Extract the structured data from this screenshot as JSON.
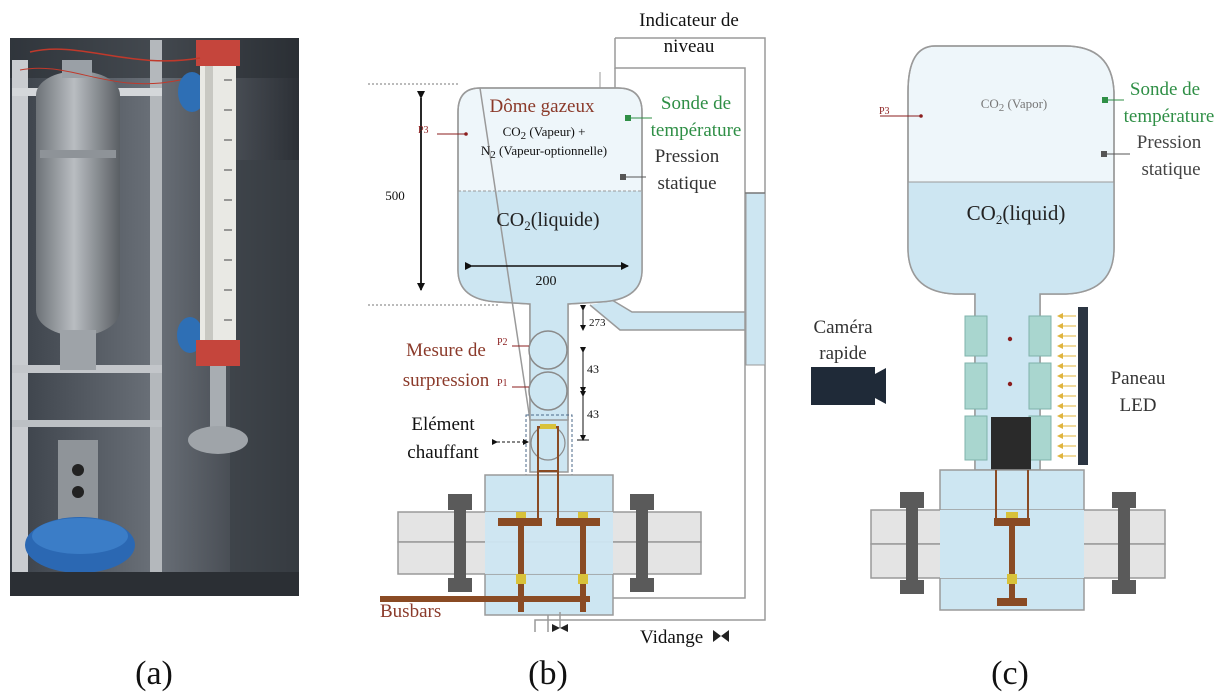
{
  "panels": {
    "a": {
      "caption": "(a)"
    },
    "b": {
      "caption": "(b)",
      "level_indicator": {
        "line1": "Indicateur de",
        "line2": "niveau"
      },
      "dome": {
        "title": "Dôme gazeux",
        "gas1_prefix": "CO",
        "gas1_sub": "2",
        "gas1_suffix": " (Vapeur) +",
        "gas2_prefix": "N",
        "gas2_sub": "2",
        "gas2_suffix": " (Vapeur-optionnelle)"
      },
      "liquid": {
        "prefix": "CO",
        "sub": "2",
        "suffix": "(liquide)"
      },
      "temp_probe": {
        "line1": "Sonde de",
        "line2": "température"
      },
      "static_pressure": {
        "line1": "Pression",
        "line2": "statique"
      },
      "sensors": {
        "p3": "P3",
        "p2": "P2",
        "p1": "P1"
      },
      "overpressure": {
        "line1": "Mesure de",
        "line2": "surpression"
      },
      "heater": {
        "line1": "Elément",
        "line2": "chauffant"
      },
      "busbars": "Busbars",
      "drain": "Vidange",
      "dims": {
        "height": "500",
        "width": "200",
        "d1": "273",
        "d2": "43",
        "d3": "43"
      }
    },
    "c": {
      "caption": "(c)",
      "vapor": {
        "prefix": "CO",
        "sub": "2",
        "suffix": " (Vapor)"
      },
      "liquid": {
        "prefix": "CO",
        "sub": "2",
        "suffix": "(liquid)"
      },
      "temp_probe": {
        "line1": "Sonde de",
        "line2": "température"
      },
      "static_pressure": {
        "line1": "Pression",
        "line2": "statique"
      },
      "p3": "P3",
      "camera": {
        "line1": "Caméra",
        "line2": "rapide"
      },
      "led": {
        "line1": "Paneau",
        "line2": "LED"
      }
    }
  },
  "colors": {
    "liquid": "#cde6f2",
    "vapor": "#eef6fa",
    "vessel_outline": "#9a9a9a",
    "sensor_red": "#8b1e1e",
    "probe_green": "#2f8f46",
    "label_brown": "#8b3a2a",
    "copper": "#8a4b24",
    "flange": "#e4e4e4",
    "bolt": "#5a5a5a",
    "camera": "#1f2a38",
    "led_panel": "#2b3542",
    "led_arrow": "#e0b43c",
    "window": "#a9d6cf"
  }
}
